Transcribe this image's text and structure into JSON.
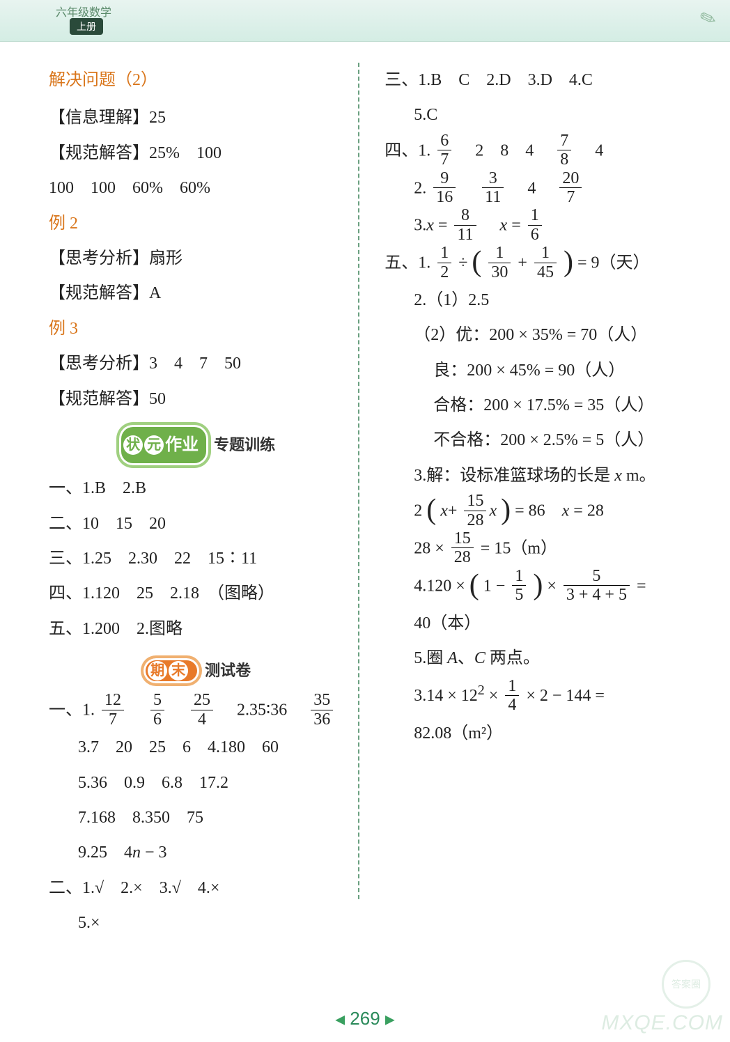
{
  "header": {
    "grade": "六年级数学",
    "volume": "上册"
  },
  "left": {
    "solve_title": "解决问题（2）",
    "info_understand": "【信息理解】25",
    "std_ans_1a": "【规范解答】25%　100",
    "std_ans_1b": "100　100　60%　60%",
    "ex2": "例 2",
    "think2": "【思考分析】扇形",
    "std2": "【规范解答】A",
    "ex3": "例 3",
    "think3": "【思考分析】3　4　7　50",
    "std3": "【规范解答】50",
    "badge1_a": "状",
    "badge1_b": "元",
    "badge1_c": "作业",
    "badge1_suffix": "专题训练",
    "l1": "一、1.B　2.B",
    "l2": "二、10　15　20",
    "l3": "三、1.25　2.30　22　15∶11",
    "l4": "四、1.120　25　2.18　（图略）",
    "l5": "五、1.200　2.图略",
    "badge2_a": "期",
    "badge2_b": "末",
    "badge2_suffix": "测试卷",
    "y1_pre": "一、1.",
    "y1_f1n": "12",
    "y1_f1d": "7",
    "y1_f2n": "5",
    "y1_f2d": "6",
    "y1_f3n": "25",
    "y1_f3d": "4",
    "y1_mid": "2.35∶36",
    "y1_f4n": "35",
    "y1_f4d": "36",
    "y3": "3.7　20　25　6　4.180　60",
    "y5": "5.36　0.9　6.8　17.2",
    "y7": "7.168　8.350　75",
    "y9a": "9.25　4",
    "y9b": "n",
    "y9c": " − 3",
    "er": "二、1.√　2.×　3.√　4.×",
    "er5": "5.×"
  },
  "right": {
    "san": "三、1.B　C　2.D　3.D　4.C",
    "san5": "5.C",
    "si_pre": "四、1.",
    "si_f1n": "6",
    "si_f1d": "7",
    "si_mid1": "2　8　4",
    "si_f2n": "7",
    "si_f2d": "8",
    "si_mid2": "4",
    "si2_pre": "2.",
    "si2_f1n": "9",
    "si2_f1d": "16",
    "si2_f2n": "3",
    "si2_f2d": "11",
    "si2_mid": "4",
    "si2_f3n": "20",
    "si2_f3d": "7",
    "si3_pre": "3.",
    "si3_x": "x",
    "si3_eq": " = ",
    "si3_f1n": "8",
    "si3_f1d": "11",
    "si3_f2n": "1",
    "si3_f2d": "6",
    "wu_pre": "五、1.",
    "wu_f1n": "1",
    "wu_f1d": "2",
    "wu_div": " ÷ ",
    "wu_f2n": "1",
    "wu_f2d": "30",
    "wu_plus": " + ",
    "wu_f3n": "1",
    "wu_f3d": "45",
    "wu_tail": " = 9（天）",
    "wu2_1": "2.（1）2.5",
    "wu2_2": "（2）优：200 × 35% = 70（人）",
    "wu2_3": "良：200 × 45% = 90（人）",
    "wu2_4": "合格：200 × 17.5% = 35（人）",
    "wu2_5": "不合格：200 × 2.5% = 5（人）",
    "wu3a": "3.解：设标准篮球场的长是 ",
    "wu3x": "x",
    "wu3b": " m。",
    "wu3eq_pre": "2 ",
    "wu3eq_x1": "x",
    "wu3eq_plus": "+",
    "wu3eq_fn": "15",
    "wu3eq_fd": "28",
    "wu3eq_x2": "x",
    "wu3eq_mid": " = 86　",
    "wu3eq_x3": "x",
    "wu3eq_tail": " = 28",
    "wu3l2_a": "28 × ",
    "wu3l2_fn": "15",
    "wu3l2_fd": "28",
    "wu3l2_b": " = 15（m）",
    "wu4_a": "4.120 × ",
    "wu4_b": "1 − ",
    "wu4_fn": "1",
    "wu4_fd": "5",
    "wu4_c": " × ",
    "wu4_f2n": "5",
    "wu4_f2d": "3 + 4 + 5",
    "wu4_eq": " =",
    "wu4_res": "40（本）",
    "wu5a": "5.圈 ",
    "wu5A": "A",
    "wu5b": "、",
    "wu5C": "C",
    "wu5c": " 两点。",
    "wu5l2_a": "3.14 × 12",
    "wu5l2_sup": "2",
    "wu5l2_b": " × ",
    "wu5l2_fn": "1",
    "wu5l2_fd": "4",
    "wu5l2_c": " × 2 − 144 =",
    "wu5l3": "82.08（m²）"
  },
  "footer": {
    "page": "269"
  },
  "watermark": {
    "text": "MXQE.COM",
    "circle": "答案圈"
  }
}
